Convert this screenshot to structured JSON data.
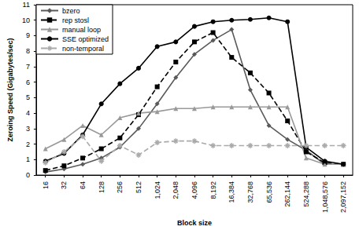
{
  "chart_data": {
    "type": "line",
    "x_label": "Block size",
    "y_label": "Zeroing Speed (Gigabytes/sec)",
    "categories": [
      "16",
      "32",
      "64",
      "128",
      "256",
      "512",
      "1,024",
      "2,048",
      "4,096",
      "8,192",
      "16,384",
      "32,768",
      "65,536",
      "262,144",
      "524,288",
      "1,048,576",
      "2,097,152"
    ],
    "ylim": [
      0,
      11
    ],
    "yticks": [
      0,
      1,
      2,
      3,
      4,
      5,
      6,
      7,
      8,
      9,
      10,
      11
    ],
    "grid": false,
    "legend": "upper left",
    "series": [
      {
        "name": "bzero",
        "color": "#5a5a5a",
        "marker": "diamond",
        "line_style": "solid",
        "values": [
          0.2,
          0.4,
          0.7,
          1.1,
          1.8,
          3.0,
          4.6,
          6.3,
          7.8,
          8.7,
          9.4,
          5.5,
          3.2,
          2.3,
          1.6,
          0.7,
          0.7
        ]
      },
      {
        "name": "rep stosl",
        "color": "#000000",
        "marker": "square",
        "line_style": "dashed",
        "values": [
          0.3,
          0.6,
          1.1,
          1.7,
          2.4,
          3.9,
          5.7,
          7.3,
          8.6,
          9.2,
          7.6,
          6.6,
          5.3,
          3.5,
          1.5,
          0.8,
          0.7
        ]
      },
      {
        "name": "manual loop",
        "color": "#999999",
        "marker": "triangle",
        "line_style": "solid",
        "values": [
          1.7,
          2.3,
          3.2,
          2.6,
          3.7,
          4.0,
          4.1,
          4.3,
          4.3,
          4.4,
          4.4,
          4.4,
          4.4,
          4.4,
          1.1,
          0.7,
          0.7
        ]
      },
      {
        "name": "SSE optimized",
        "color": "#000000",
        "marker": "circle",
        "line_style": "solid",
        "values": [
          0.9,
          1.4,
          2.6,
          4.6,
          5.9,
          6.9,
          8.3,
          8.6,
          9.6,
          9.9,
          10.0,
          10.05,
          10.15,
          9.9,
          1.8,
          0.9,
          0.7
        ]
      },
      {
        "name": "non-temporal",
        "color": "#aaaaaa",
        "marker": "asterisk",
        "line_style": "dashed",
        "values": [
          0.8,
          1.5,
          2.5,
          0.9,
          1.9,
          1.3,
          2.1,
          2.2,
          2.2,
          1.9,
          1.9,
          1.9,
          1.9,
          1.9,
          1.9,
          1.9,
          1.9
        ]
      }
    ]
  }
}
